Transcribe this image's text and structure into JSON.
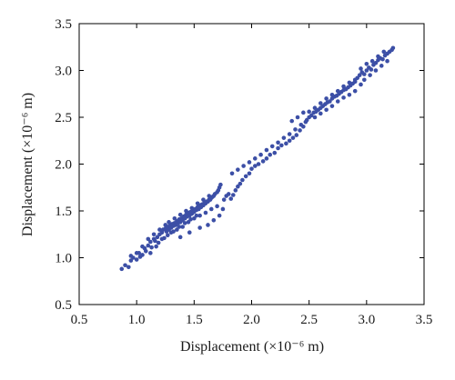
{
  "chart_data": {
    "type": "scatter",
    "title": "",
    "xlabel": "Displacement (×10⁻⁶ m)",
    "ylabel": "Displacement (×10⁻⁶ m)",
    "xlim": [
      0.5,
      3.5
    ],
    "ylim": [
      0.5,
      3.5
    ],
    "xticks": [
      "0.5",
      "1.0",
      "1.5",
      "2.0",
      "2.5",
      "3.0",
      "3.5"
    ],
    "yticks": [
      "0.5",
      "1.0",
      "1.5",
      "2.0",
      "2.5",
      "3.0",
      "3.5"
    ],
    "grid": false,
    "legend": "none",
    "marker_color": "#3c4fa6",
    "series": [
      {
        "points": [
          [
            0.87,
            0.88
          ],
          [
            0.9,
            0.92
          ],
          [
            0.93,
            0.9
          ],
          [
            0.95,
            0.97
          ],
          [
            0.97,
            1.0
          ],
          [
            1.0,
            0.98
          ],
          [
            1.02,
            1.05
          ],
          [
            1.03,
            1.01
          ],
          [
            1.05,
            1.03
          ],
          [
            1.07,
            1.1
          ],
          [
            1.08,
            1.07
          ],
          [
            1.1,
            1.13
          ],
          [
            1.12,
            1.17
          ],
          [
            1.13,
            1.11
          ],
          [
            1.15,
            1.2
          ],
          [
            1.16,
            1.18
          ],
          [
            1.18,
            1.22
          ],
          [
            1.19,
            1.16
          ],
          [
            1.2,
            1.25
          ],
          [
            1.22,
            1.27
          ],
          [
            1.23,
            1.3
          ],
          [
            1.24,
            1.21
          ],
          [
            1.25,
            1.31
          ],
          [
            1.26,
            1.28
          ],
          [
            1.27,
            1.33
          ],
          [
            1.28,
            1.3
          ],
          [
            1.29,
            1.35
          ],
          [
            1.3,
            1.32
          ],
          [
            1.31,
            1.36
          ],
          [
            1.32,
            1.34
          ],
          [
            1.33,
            1.37
          ],
          [
            1.34,
            1.35
          ],
          [
            1.35,
            1.39
          ],
          [
            1.36,
            1.37
          ],
          [
            1.37,
            1.41
          ],
          [
            1.38,
            1.38
          ],
          [
            1.39,
            1.42
          ],
          [
            1.4,
            1.4
          ],
          [
            1.41,
            1.44
          ],
          [
            1.42,
            1.42
          ],
          [
            1.43,
            1.46
          ],
          [
            1.44,
            1.44
          ],
          [
            1.45,
            1.48
          ],
          [
            1.46,
            1.45
          ],
          [
            1.47,
            1.49
          ],
          [
            1.48,
            1.47
          ],
          [
            1.49,
            1.51
          ],
          [
            1.5,
            1.49
          ],
          [
            1.51,
            1.52
          ],
          [
            1.52,
            1.51
          ],
          [
            1.53,
            1.54
          ],
          [
            1.54,
            1.52
          ],
          [
            1.55,
            1.56
          ],
          [
            1.56,
            1.54
          ],
          [
            1.57,
            1.57
          ],
          [
            1.58,
            1.56
          ],
          [
            1.59,
            1.59
          ],
          [
            1.6,
            1.58
          ],
          [
            1.61,
            1.6
          ],
          [
            1.62,
            1.6
          ],
          [
            1.63,
            1.62
          ],
          [
            1.64,
            1.62
          ],
          [
            1.65,
            1.64
          ],
          [
            1.66,
            1.65
          ],
          [
            1.67,
            1.66
          ],
          [
            1.68,
            1.68
          ],
          [
            1.7,
            1.7
          ],
          [
            1.71,
            1.72
          ],
          [
            1.72,
            1.75
          ],
          [
            1.73,
            1.78
          ],
          [
            1.3,
            1.27
          ],
          [
            1.35,
            1.3
          ],
          [
            1.4,
            1.33
          ],
          [
            1.45,
            1.38
          ],
          [
            1.5,
            1.42
          ],
          [
            1.55,
            1.45
          ],
          [
            1.6,
            1.48
          ],
          [
            1.65,
            1.52
          ],
          [
            1.7,
            1.55
          ],
          [
            1.28,
            1.38
          ],
          [
            1.33,
            1.42
          ],
          [
            1.38,
            1.46
          ],
          [
            1.43,
            1.5
          ],
          [
            1.48,
            1.53
          ],
          [
            1.53,
            1.58
          ],
          [
            1.58,
            1.62
          ],
          [
            1.63,
            1.66
          ],
          [
            1.25,
            1.35
          ],
          [
            1.2,
            1.3
          ],
          [
            1.15,
            1.25
          ],
          [
            1.1,
            1.2
          ],
          [
            1.05,
            1.12
          ],
          [
            1.0,
            1.05
          ],
          [
            0.95,
            1.02
          ],
          [
            1.12,
            1.05
          ],
          [
            1.17,
            1.12
          ],
          [
            1.22,
            1.2
          ],
          [
            1.27,
            1.24
          ],
          [
            1.32,
            1.28
          ],
          [
            1.37,
            1.33
          ],
          [
            1.42,
            1.37
          ],
          [
            1.47,
            1.41
          ],
          [
            1.52,
            1.45
          ],
          [
            1.38,
            1.22
          ],
          [
            1.46,
            1.27
          ],
          [
            1.55,
            1.32
          ],
          [
            1.62,
            1.35
          ],
          [
            1.67,
            1.4
          ],
          [
            1.72,
            1.45
          ],
          [
            1.75,
            1.52
          ],
          [
            1.76,
            1.62
          ],
          [
            1.78,
            1.66
          ],
          [
            1.8,
            1.68
          ],
          [
            1.82,
            1.63
          ],
          [
            1.84,
            1.67
          ],
          [
            1.86,
            1.72
          ],
          [
            1.88,
            1.76
          ],
          [
            1.9,
            1.79
          ],
          [
            1.92,
            1.83
          ],
          [
            1.95,
            1.87
          ],
          [
            1.98,
            1.9
          ],
          [
            2.0,
            1.95
          ],
          [
            2.03,
            1.98
          ],
          [
            2.06,
            2.0
          ],
          [
            2.1,
            2.03
          ],
          [
            2.13,
            2.06
          ],
          [
            2.16,
            2.1
          ],
          [
            2.2,
            2.12
          ],
          [
            2.23,
            2.17
          ],
          [
            2.26,
            2.2
          ],
          [
            2.3,
            2.22
          ],
          [
            2.33,
            2.25
          ],
          [
            2.36,
            2.28
          ],
          [
            2.39,
            2.31
          ],
          [
            2.42,
            2.36
          ],
          [
            2.45,
            2.4
          ],
          [
            2.47,
            2.45
          ],
          [
            1.83,
            1.9
          ],
          [
            1.88,
            1.94
          ],
          [
            1.93,
            1.98
          ],
          [
            1.98,
            2.02
          ],
          [
            2.03,
            2.06
          ],
          [
            2.08,
            2.1
          ],
          [
            2.13,
            2.15
          ],
          [
            2.18,
            2.19
          ],
          [
            2.23,
            2.23
          ],
          [
            2.28,
            2.28
          ],
          [
            2.33,
            2.32
          ],
          [
            2.38,
            2.37
          ],
          [
            2.43,
            2.42
          ],
          [
            2.48,
            2.47
          ],
          [
            2.5,
            2.5
          ],
          [
            2.52,
            2.52
          ],
          [
            2.54,
            2.55
          ],
          [
            2.56,
            2.56
          ],
          [
            2.58,
            2.58
          ],
          [
            2.6,
            2.6
          ],
          [
            2.62,
            2.62
          ],
          [
            2.64,
            2.64
          ],
          [
            2.66,
            2.66
          ],
          [
            2.68,
            2.67
          ],
          [
            2.7,
            2.7
          ],
          [
            2.72,
            2.72
          ],
          [
            2.74,
            2.73
          ],
          [
            2.76,
            2.75
          ],
          [
            2.78,
            2.77
          ],
          [
            2.8,
            2.79
          ],
          [
            2.82,
            2.8
          ],
          [
            2.84,
            2.82
          ],
          [
            2.86,
            2.84
          ],
          [
            2.88,
            2.86
          ],
          [
            2.9,
            2.88
          ],
          [
            2.5,
            2.56
          ],
          [
            2.55,
            2.6
          ],
          [
            2.6,
            2.65
          ],
          [
            2.65,
            2.7
          ],
          [
            2.7,
            2.74
          ],
          [
            2.75,
            2.78
          ],
          [
            2.8,
            2.83
          ],
          [
            2.85,
            2.87
          ],
          [
            2.9,
            2.9
          ],
          [
            2.55,
            2.5
          ],
          [
            2.6,
            2.54
          ],
          [
            2.65,
            2.58
          ],
          [
            2.7,
            2.62
          ],
          [
            2.75,
            2.67
          ],
          [
            2.8,
            2.71
          ],
          [
            2.85,
            2.74
          ],
          [
            2.9,
            2.78
          ],
          [
            2.95,
            2.85
          ],
          [
            2.92,
            2.92
          ],
          [
            2.94,
            2.95
          ],
          [
            2.96,
            2.98
          ],
          [
            2.98,
            2.96
          ],
          [
            3.0,
            3.0
          ],
          [
            3.02,
            3.03
          ],
          [
            3.04,
            3.01
          ],
          [
            3.06,
            3.06
          ],
          [
            3.08,
            3.08
          ],
          [
            3.1,
            3.11
          ],
          [
            3.12,
            3.13
          ],
          [
            3.14,
            3.12
          ],
          [
            3.16,
            3.16
          ],
          [
            3.18,
            3.18
          ],
          [
            3.2,
            3.2
          ],
          [
            3.22,
            3.22
          ],
          [
            3.23,
            3.24
          ],
          [
            2.95,
            3.02
          ],
          [
            3.0,
            3.07
          ],
          [
            3.05,
            3.1
          ],
          [
            3.1,
            3.15
          ],
          [
            3.15,
            3.2
          ],
          [
            2.98,
            2.9
          ],
          [
            3.03,
            2.95
          ],
          [
            3.08,
            3.0
          ],
          [
            3.13,
            3.05
          ],
          [
            3.18,
            3.1
          ],
          [
            2.45,
            2.55
          ],
          [
            2.4,
            2.5
          ],
          [
            2.35,
            2.46
          ]
        ]
      }
    ]
  }
}
